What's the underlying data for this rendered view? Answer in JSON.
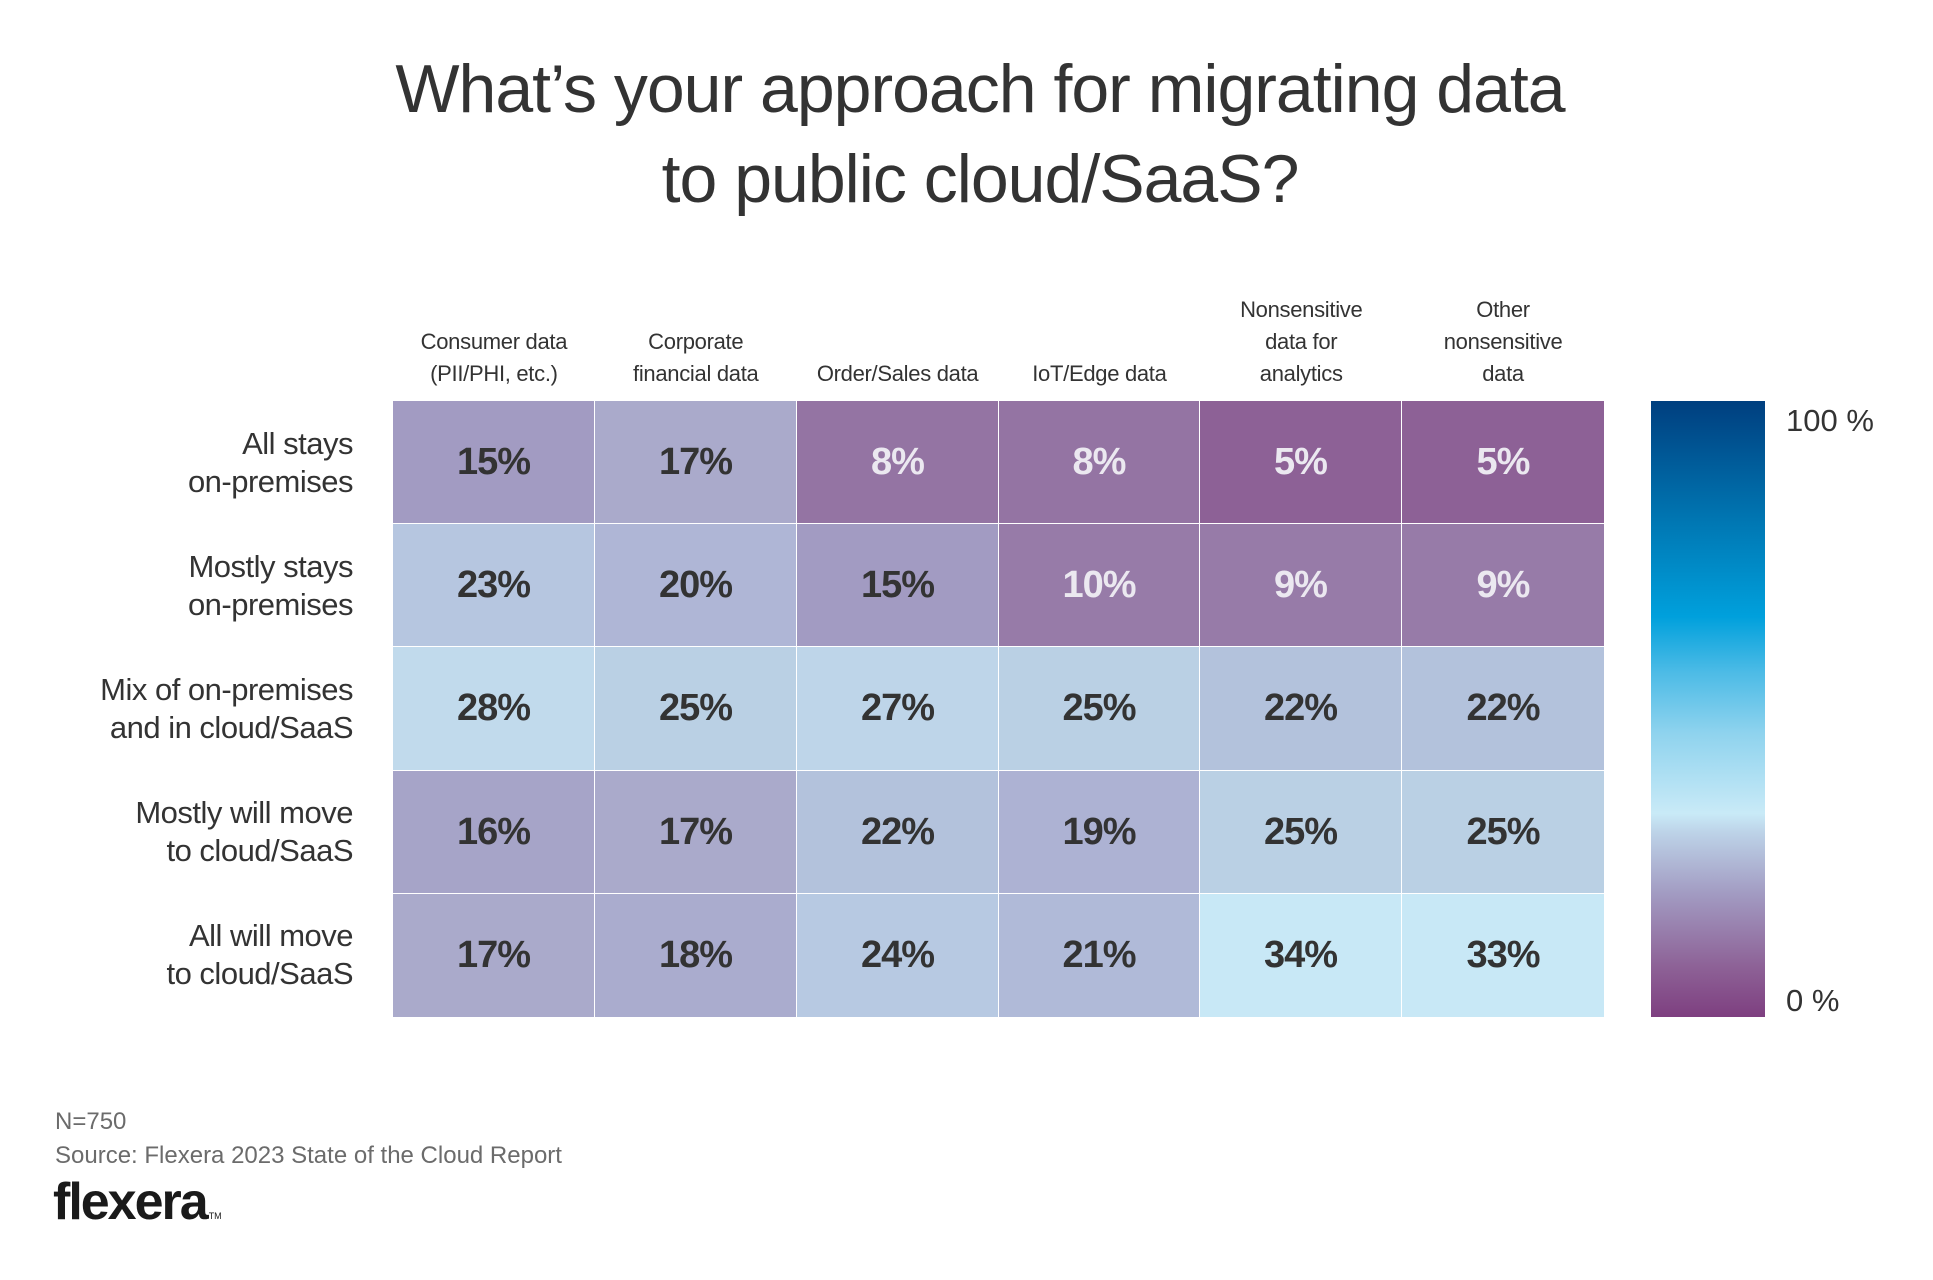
{
  "chart_data": {
    "type": "heatmap",
    "title": "What’s your approach for migrating data to public cloud/SaaS?",
    "title_lines": [
      "What’s your approach for migrating data",
      "to public cloud/SaaS?"
    ],
    "columns": [
      {
        "label": "Consumer data (PII/PHI, etc.)",
        "lines": [
          "Consumer data",
          "(PII/PHI, etc.)"
        ]
      },
      {
        "label": "Corporate financial data",
        "lines": [
          "Corporate",
          "financial data"
        ]
      },
      {
        "label": "Order/Sales data",
        "lines": [
          "Order/Sales data"
        ]
      },
      {
        "label": "IoT/Edge data",
        "lines": [
          "IoT/Edge data"
        ]
      },
      {
        "label": "Nonsensitive data for analytics",
        "lines": [
          "Nonsensitive",
          "data for",
          "analytics"
        ]
      },
      {
        "label": "Other nonsensitive data",
        "lines": [
          "Other",
          "nonsensitive",
          "data"
        ]
      }
    ],
    "rows": [
      {
        "label": "All stays on-premises",
        "lines": [
          "All stays",
          "on-premises"
        ]
      },
      {
        "label": "Mostly stays on-premises",
        "lines": [
          "Mostly stays",
          "on-premises"
        ]
      },
      {
        "label": "Mix of on-premises and in cloud/SaaS",
        "lines": [
          "Mix of on-premises",
          "and in cloud/SaaS"
        ]
      },
      {
        "label": "Mostly will move to cloud/SaaS",
        "lines": [
          "Mostly will move",
          "to cloud/SaaS"
        ]
      },
      {
        "label": "All will move to cloud/SaaS",
        "lines": [
          "All will move",
          "to cloud/SaaS"
        ]
      }
    ],
    "values": [
      [
        15,
        17,
        8,
        8,
        5,
        5
      ],
      [
        23,
        20,
        15,
        10,
        9,
        9
      ],
      [
        28,
        25,
        27,
        25,
        22,
        22
      ],
      [
        16,
        17,
        22,
        19,
        25,
        25
      ],
      [
        17,
        18,
        24,
        21,
        34,
        33
      ]
    ],
    "value_suffix": "%",
    "colorbar": {
      "min": 0,
      "max": 100,
      "min_label": "0 %",
      "max_label": "100 %",
      "stops": [
        {
          "value": 0,
          "color": "#7e3f80"
        },
        {
          "value": 8,
          "color": "#8d6196"
        },
        {
          "value": 20,
          "color": "#a29bc2"
        },
        {
          "value": 30,
          "color": "#bdd3e8"
        },
        {
          "value": 33,
          "color": "#c9eaf7"
        },
        {
          "value": 46,
          "color": "#8fd3ee"
        },
        {
          "value": 56,
          "color": "#4cbbe6"
        },
        {
          "value": 65,
          "color": "#00a0dc"
        },
        {
          "value": 80,
          "color": "#0078b4"
        },
        {
          "value": 100,
          "color": "#003f7f"
        }
      ]
    },
    "cell_colors": {
      "5": "#8d6196",
      "8": "#9474a3",
      "9": "#977ba8",
      "10": "#977ba8",
      "15": "#a29bc2",
      "16": "#a6a4c8",
      "17": "#aaaacb",
      "18": "#aaacce",
      "19": "#adb2d3",
      "20": "#afb6d6",
      "21": "#b0bad8",
      "22": "#b3c2dc",
      "23": "#b6c6e0",
      "24": "#b7c9e2",
      "25": "#bad0e4",
      "27": "#bed5e9",
      "28": "#c1daec",
      "33": "#c8e8f6",
      "34": "#c8e8f6"
    },
    "text_colors": {
      "dark": "#333333",
      "light": "#ebe8f0"
    },
    "light_text_max_value": 10,
    "legend": "right"
  },
  "footer": {
    "sample_size": "N=750",
    "source": "Source: Flexera 2023 State of the Cloud Report",
    "logo_text": "flexera",
    "logo_tm": "TM"
  }
}
